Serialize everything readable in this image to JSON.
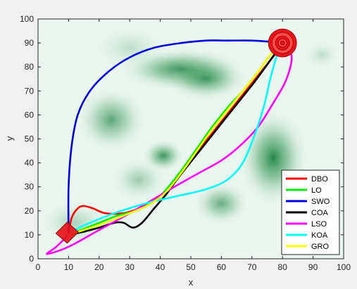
{
  "chart_data": {
    "type": "line",
    "title": "",
    "xlabel": "x",
    "ylabel": "y",
    "xlim": [
      0,
      100
    ],
    "ylim": [
      0,
      100
    ],
    "xticks": [
      "0",
      "10",
      "20",
      "30",
      "40",
      "50",
      "60",
      "70",
      "80",
      "90",
      "100"
    ],
    "yticks": [
      "0",
      "10",
      "20",
      "30",
      "40",
      "50",
      "60",
      "70",
      "80",
      "90",
      "100"
    ],
    "grid": false,
    "legend_position": "bottom-right",
    "start_point": [
      10,
      10
    ],
    "goal_point": [
      80,
      90
    ],
    "background": {
      "type": "heatmap",
      "colormap": "white-to-green",
      "blobs": [
        {
          "x": 47,
          "y": 79,
          "sx": 9,
          "sy": 4,
          "a": 0.85
        },
        {
          "x": 55,
          "y": 75,
          "sx": 6,
          "sy": 4,
          "a": 0.75
        },
        {
          "x": 24,
          "y": 58,
          "sx": 5,
          "sy": 6,
          "a": 0.65
        },
        {
          "x": 41,
          "y": 43,
          "sx": 3,
          "sy": 3,
          "a": 0.8
        },
        {
          "x": 77,
          "y": 42,
          "sx": 5,
          "sy": 9,
          "a": 0.9
        },
        {
          "x": 60,
          "y": 23,
          "sx": 4,
          "sy": 4,
          "a": 0.6
        },
        {
          "x": 12,
          "y": 15,
          "sx": 5,
          "sy": 4,
          "a": 0.3
        },
        {
          "x": 93,
          "y": 85,
          "sx": 2.5,
          "sy": 2.5,
          "a": 0.2
        },
        {
          "x": 33,
          "y": 33,
          "sx": 4,
          "sy": 4,
          "a": 0.35
        },
        {
          "x": 30,
          "y": 88,
          "sx": 5,
          "sy": 4,
          "a": 0.2
        }
      ]
    },
    "series": [
      {
        "name": "DBO",
        "color": "#ff0000",
        "points": [
          [
            10,
            10
          ],
          [
            11,
            17
          ],
          [
            13,
            21
          ],
          [
            15,
            22
          ],
          [
            18,
            21
          ],
          [
            22,
            19
          ],
          [
            28,
            19
          ],
          [
            33,
            21
          ],
          [
            38,
            24
          ],
          [
            43,
            30
          ],
          [
            48,
            38
          ],
          [
            53,
            46
          ],
          [
            58,
            54
          ],
          [
            63,
            62
          ],
          [
            68,
            70
          ],
          [
            73,
            78
          ],
          [
            78,
            86
          ],
          [
            80,
            90
          ]
        ]
      },
      {
        "name": "LO",
        "color": "#00ee00",
        "points": [
          [
            10,
            10
          ],
          [
            14,
            12
          ],
          [
            20,
            15
          ],
          [
            26,
            18
          ],
          [
            32,
            20
          ],
          [
            38,
            24
          ],
          [
            42,
            29
          ],
          [
            47,
            37
          ],
          [
            52,
            46
          ],
          [
            57,
            55
          ],
          [
            62,
            63
          ],
          [
            67,
            70
          ],
          [
            72,
            78
          ],
          [
            76,
            85
          ],
          [
            80,
            90
          ]
        ]
      },
      {
        "name": "SWO",
        "color": "#0000dd",
        "points": [
          [
            10,
            10
          ],
          [
            10,
            30
          ],
          [
            11,
            47
          ],
          [
            13,
            60
          ],
          [
            17,
            70
          ],
          [
            23,
            78
          ],
          [
            30,
            84
          ],
          [
            38,
            88
          ],
          [
            47,
            90
          ],
          [
            55,
            91
          ],
          [
            62,
            91
          ],
          [
            70,
            91
          ],
          [
            76,
            90.5
          ],
          [
            80,
            90
          ]
        ]
      },
      {
        "name": "COA",
        "color": "#000000",
        "points": [
          [
            10,
            10
          ],
          [
            14,
            11
          ],
          [
            20,
            13
          ],
          [
            25,
            15
          ],
          [
            28,
            15
          ],
          [
            31,
            13
          ],
          [
            34,
            15
          ],
          [
            38,
            21
          ],
          [
            42,
            27
          ],
          [
            46,
            34
          ],
          [
            51,
            42
          ],
          [
            56,
            50
          ],
          [
            61,
            58
          ],
          [
            66,
            66
          ],
          [
            71,
            74
          ],
          [
            75,
            81
          ],
          [
            80,
            90
          ]
        ]
      },
      {
        "name": "LSO",
        "color": "#ff00ff",
        "points": [
          [
            10,
            10
          ],
          [
            6,
            5
          ],
          [
            3,
            2
          ],
          [
            10,
            5
          ],
          [
            20,
            12
          ],
          [
            30,
            19
          ],
          [
            38,
            25
          ],
          [
            46,
            31
          ],
          [
            53,
            36
          ],
          [
            60,
            41
          ],
          [
            66,
            47
          ],
          [
            72,
            55
          ],
          [
            77,
            65
          ],
          [
            81,
            74
          ],
          [
            83,
            83
          ],
          [
            82,
            88
          ],
          [
            80,
            90
          ]
        ]
      },
      {
        "name": "KOA",
        "color": "#00ffff",
        "points": [
          [
            10,
            10
          ],
          [
            12,
            12
          ],
          [
            17,
            15
          ],
          [
            25,
            19
          ],
          [
            35,
            23
          ],
          [
            45,
            26
          ],
          [
            55,
            29
          ],
          [
            62,
            33
          ],
          [
            67,
            40
          ],
          [
            71,
            52
          ],
          [
            74,
            64
          ],
          [
            76,
            75
          ],
          [
            78,
            84
          ],
          [
            80,
            90
          ]
        ]
      },
      {
        "name": "GRO",
        "color": "#ffff00",
        "points": [
          [
            10,
            10
          ],
          [
            15,
            12
          ],
          [
            22,
            15
          ],
          [
            30,
            19
          ],
          [
            37,
            23
          ],
          [
            42,
            28
          ],
          [
            47,
            36
          ],
          [
            52,
            45
          ],
          [
            57,
            54
          ],
          [
            62,
            62
          ],
          [
            67,
            70
          ],
          [
            72,
            78
          ],
          [
            76,
            85
          ],
          [
            80,
            90
          ]
        ]
      }
    ]
  }
}
